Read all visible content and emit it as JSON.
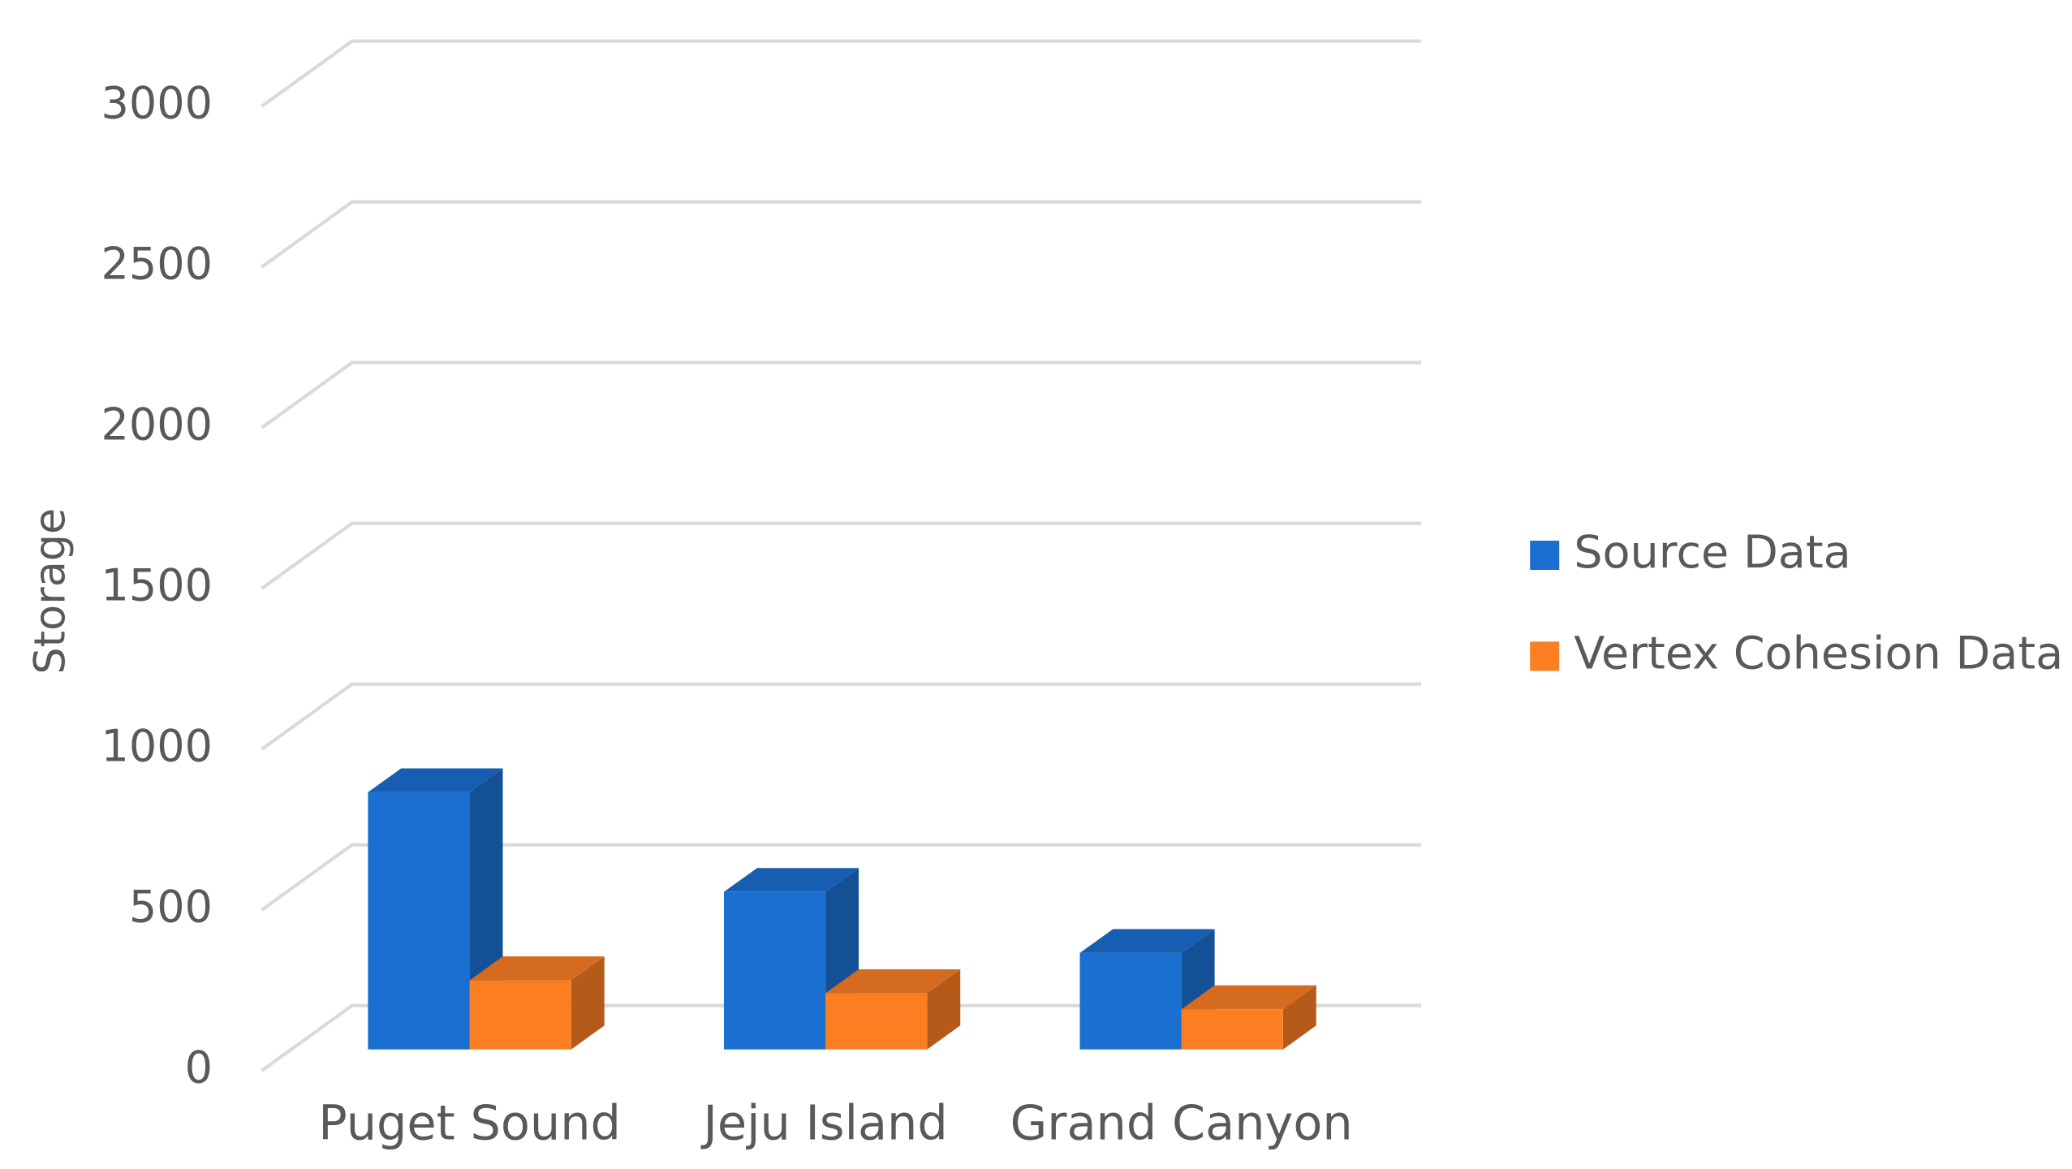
{
  "chart_data": {
    "type": "bar3d",
    "y_label": "Storage",
    "categories": [
      "Puget Sound",
      "Jeju Island",
      "Grand Canyon"
    ],
    "series": [
      {
        "name": "Source Data",
        "color": "#1a6fd1",
        "values": [
          800,
          490,
          300
        ]
      },
      {
        "name": "Vertex Cohesion Data",
        "color": "#fb7e23",
        "values": [
          215,
          175,
          125
        ]
      }
    ],
    "ylim": [
      0,
      3000
    ],
    "yticks": [
      0,
      500,
      1000,
      1500,
      2000,
      2500,
      3000
    ],
    "grid": true,
    "legend": "right"
  }
}
